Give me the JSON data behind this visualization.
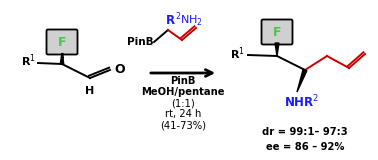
{
  "bg_color": "#ffffff",
  "fig_width": 3.78,
  "fig_height": 1.6,
  "dpi": 100,
  "black": "#000000",
  "red": "#cc0000",
  "blue": "#1a1aff",
  "green": "#4ec44e",
  "gray_fill": "#d0d0d0",
  "dr_text": "dr = 99:1– 97:3",
  "ee_text": "ee = 86 – 92%",
  "stats_fs": 7.2,
  "reagent_lines": [
    "PinB",
    "MeOH/pentane",
    "(1:1)",
    "rt, 24 h",
    "(41-73%)"
  ],
  "reagent_fs": 7.2
}
